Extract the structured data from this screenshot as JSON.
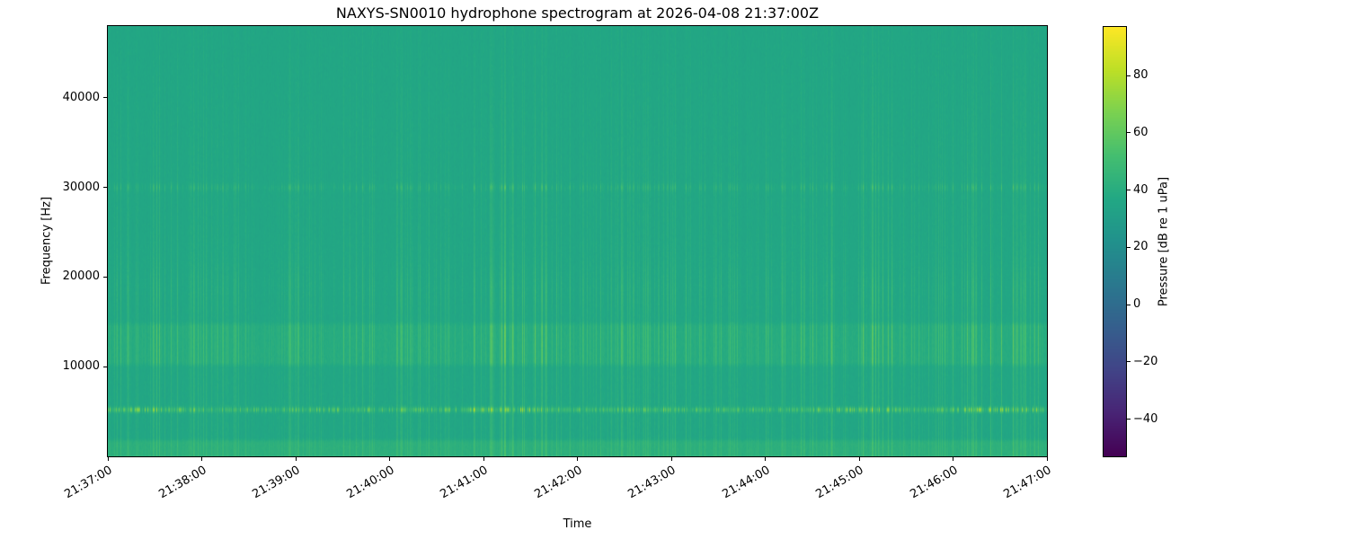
{
  "chart_data": {
    "type": "heatmap",
    "title": "NAXYS-SN0010 hydrophone spectrogram at 2026-04-08 21:37:00Z",
    "xlabel": "Time",
    "ylabel": "Frequency [Hz]",
    "x_ticks": [
      "21:37:00",
      "21:38:00",
      "21:39:00",
      "21:40:00",
      "21:41:00",
      "21:42:00",
      "21:43:00",
      "21:44:00",
      "21:45:00",
      "21:46:00",
      "21:47:00"
    ],
    "x_range_seconds": [
      0,
      600
    ],
    "y_ticks": [
      10000,
      20000,
      30000,
      40000
    ],
    "y_range_hz": [
      0,
      48000
    ],
    "grid": false,
    "colorbar": {
      "label": "Pressure [dB re 1 uPa]",
      "ticks": [
        80,
        60,
        40,
        20,
        0,
        -20,
        -40
      ],
      "vmin": -53,
      "vmax": 97,
      "colormap": "viridis"
    },
    "spectrogram_model": {
      "base_db": 36,
      "noise_db": 1.5,
      "bands": [
        {
          "name": "low-frequency-band",
          "f_lo": 0,
          "f_hi": 1600,
          "add_db": 6
        },
        {
          "name": "mid-band",
          "f_lo": 10500,
          "f_hi": 14500,
          "add_db": 3.5
        },
        {
          "name": "tonal-5khz-line",
          "f_center": 5200,
          "sigma_hz": 270,
          "add_db": 4
        },
        {
          "name": "30khz-band",
          "f_center": 30000,
          "sigma_hz": 400,
          "add_db": 1
        }
      ],
      "transients": {
        "column_probability": 0.5,
        "max_add_db": 14,
        "hf_rolloff_hz": 30000
      },
      "bursts_5khz": {
        "probability": 0.65,
        "max_add_db": 48
      },
      "seed": 20260408
    }
  }
}
